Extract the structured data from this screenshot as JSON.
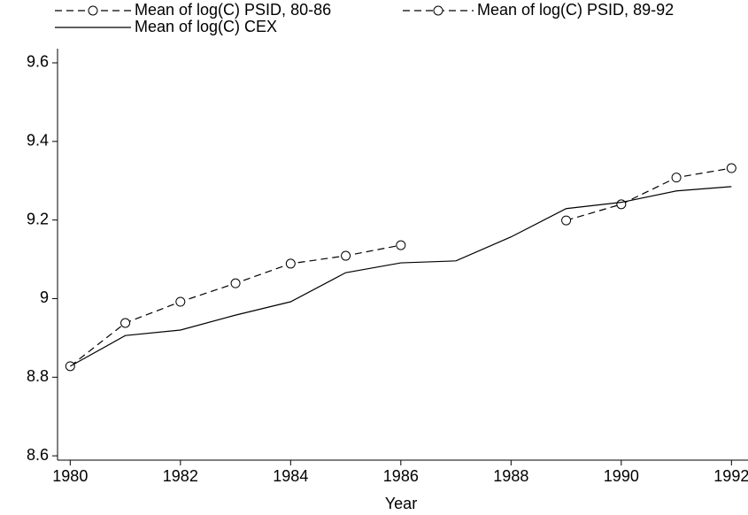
{
  "chart_data": {
    "type": "line",
    "xlabel": "Year",
    "x": [
      1980,
      1981,
      1982,
      1983,
      1984,
      1985,
      1986,
      1987,
      1988,
      1989,
      1990,
      1991,
      1992
    ],
    "series": [
      {
        "name": "Mean of log(C) PSID, 80-86",
        "color": "#000000",
        "dash": true,
        "marker": "circle",
        "values": [
          8.828,
          8.938,
          8.992,
          9.039,
          9.089,
          9.109,
          9.136,
          null,
          null,
          null,
          null,
          null,
          null
        ]
      },
      {
        "name": "Mean of log(C) PSID, 89-92",
        "color": "#000000",
        "dash": true,
        "marker": "circle",
        "values": [
          null,
          null,
          null,
          null,
          null,
          null,
          null,
          null,
          null,
          9.199,
          9.24,
          9.308,
          9.332
        ]
      },
      {
        "name": "Mean of log(C) CEX",
        "color": "#000000",
        "dash": false,
        "marker": "none",
        "values": [
          8.828,
          8.906,
          8.92,
          8.958,
          8.992,
          9.066,
          9.091,
          9.096,
          9.157,
          9.229,
          9.245,
          9.274,
          9.285
        ]
      }
    ],
    "xlim": [
      1979.77,
      1992.3
    ],
    "xticks": [
      1980,
      1982,
      1984,
      1986,
      1988,
      1990,
      1992
    ],
    "ylim": [
      8.589,
      9.636
    ],
    "yticks": [
      8.6,
      8.8,
      9,
      9.2,
      9.4,
      9.6
    ],
    "grid": false,
    "legend": "top"
  }
}
